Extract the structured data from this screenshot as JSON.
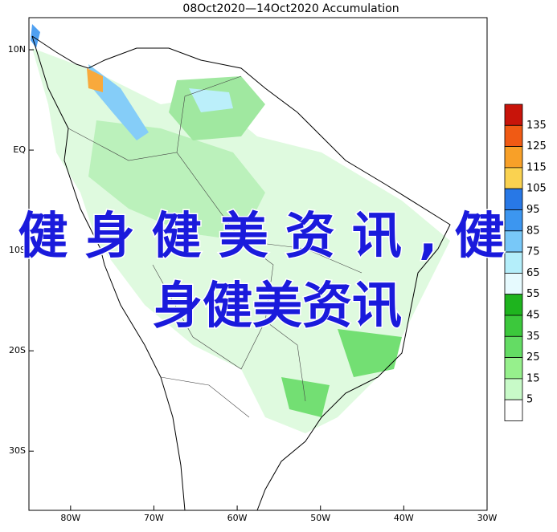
{
  "map": {
    "title": "08Oct2020—14Oct2020 Accumulation",
    "lon_range": [
      -85,
      -30
    ],
    "lat_range": [
      13.2,
      -35.9
    ],
    "lon_ticks": [
      {
        "value": -80,
        "label": "80W"
      },
      {
        "value": -70,
        "label": "70W"
      },
      {
        "value": -60,
        "label": "60W"
      },
      {
        "value": -50,
        "label": "50W"
      },
      {
        "value": -40,
        "label": "40W"
      },
      {
        "value": -30,
        "label": "30W"
      }
    ],
    "lat_ticks": [
      {
        "value": 10,
        "label": "10N"
      },
      {
        "value": 0,
        "label": "EQ"
      },
      {
        "value": -10,
        "label": "10S"
      },
      {
        "value": -20,
        "label": "20S"
      },
      {
        "value": -30,
        "label": "30S"
      }
    ]
  },
  "legend": {
    "levels": [
      135,
      125,
      115,
      105,
      95,
      85,
      75,
      65,
      55,
      45,
      35,
      25,
      15,
      5
    ],
    "colors": [
      "#c8140a",
      "#f05a14",
      "#f8a028",
      "#fad250",
      "#2878e6",
      "#3c96f0",
      "#78c8f8",
      "#b4eefa",
      "#e6fafe",
      "#1eb41e",
      "#3cc83c",
      "#64dc64",
      "#96f08c",
      "#c8fac8",
      "#ffffff"
    ]
  },
  "overlay": {
    "lines": [
      "健身健美资讯,健",
      "身健美资讯"
    ]
  }
}
